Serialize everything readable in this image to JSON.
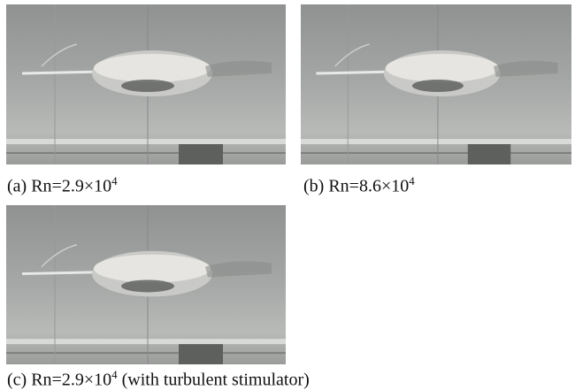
{
  "figures": [
    {
      "label": "(a) Rn=2.9×10",
      "exponent": "4"
    },
    {
      "label": "(b) Rn=8.6×10",
      "exponent": "4"
    },
    {
      "label": "(c) Rn=2.9×10",
      "exponent": "4",
      "suffix": " (with turbulent stimulator)"
    }
  ]
}
